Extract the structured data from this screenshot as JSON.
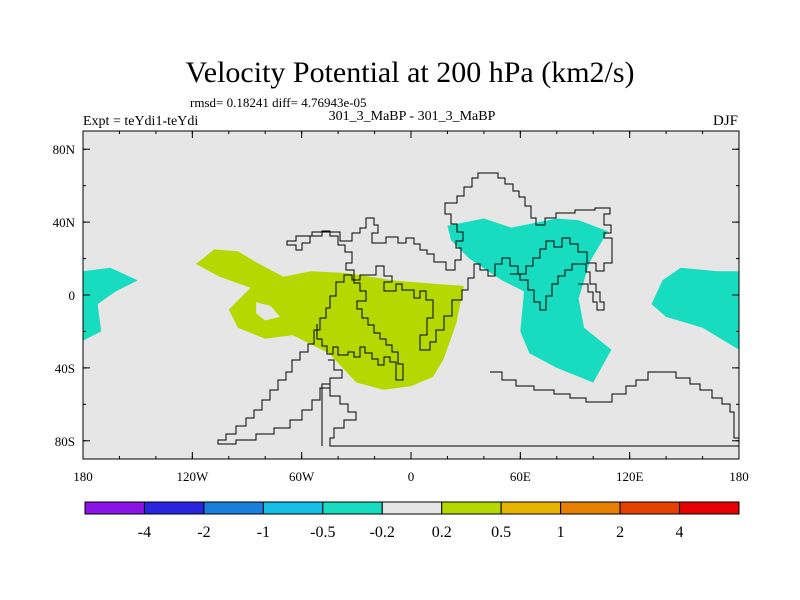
{
  "chart_data": {
    "type": "heatmap",
    "title": "Velocity Potential at 200 hPa (km2/s)",
    "subtitle": "rmsd= 0.18241  diff= 4.76943e-05",
    "left_label": "Expt = teYdi1-teYdi",
    "center_label": "301_3_MaBP - 301_3_MaBP",
    "right_label": "DJF",
    "x_axis": {
      "range": [
        -180,
        180
      ],
      "ticks": [
        {
          "value": -180,
          "label": "180"
        },
        {
          "value": -120,
          "label": "120W"
        },
        {
          "value": -60,
          "label": "60W"
        },
        {
          "value": 0,
          "label": "0"
        },
        {
          "value": 60,
          "label": "60E"
        },
        {
          "value": 120,
          "label": "120E"
        },
        {
          "value": 180,
          "label": "180"
        }
      ]
    },
    "y_axis": {
      "range": [
        -90,
        90
      ],
      "ticks": [
        {
          "value": 80,
          "label": "80N"
        },
        {
          "value": 40,
          "label": "40N"
        },
        {
          "value": 0,
          "label": "0"
        },
        {
          "value": -40,
          "label": "40S"
        },
        {
          "value": -80,
          "label": "80S"
        }
      ]
    },
    "background_color": "#e6e6e6",
    "colorbar": {
      "colors": [
        "#8a14e6",
        "#2a24e0",
        "#1a7fdc",
        "#14bfe6",
        "#18dcc0",
        "#e6e6e6",
        "#b4d800",
        "#e6b400",
        "#e68000",
        "#e64000",
        "#e60000"
      ],
      "labels": [
        "-4",
        "-2",
        "-1",
        "-0.5",
        "-0.2",
        "0.2",
        "0.5",
        "1",
        "2",
        "4"
      ]
    },
    "regions": [
      {
        "name": "west-pacific-negative",
        "level": "-0.2 to -0.5",
        "color": "#18dcc0",
        "points": [
          [
            -180,
            13
          ],
          [
            -165,
            15
          ],
          [
            -150,
            8
          ],
          [
            -162,
            2
          ],
          [
            -172,
            -5
          ],
          [
            -170,
            -20
          ],
          [
            -180,
            -25
          ]
        ]
      },
      {
        "name": "east-pacific-positive",
        "level": "0.2 to 0.5",
        "color": "#b4d800",
        "points": [
          [
            -118,
            17
          ],
          [
            -108,
            25
          ],
          [
            -95,
            24
          ],
          [
            -85,
            18
          ],
          [
            -70,
            10
          ],
          [
            -55,
            13
          ],
          [
            -35,
            12
          ],
          [
            -10,
            8
          ],
          [
            15,
            6
          ],
          [
            29,
            5
          ],
          [
            25,
            -15
          ],
          [
            18,
            -35
          ],
          [
            12,
            -45
          ],
          [
            0,
            -50
          ],
          [
            -15,
            -52
          ],
          [
            -30,
            -48
          ],
          [
            -45,
            -32
          ],
          [
            -65,
            -22
          ],
          [
            -80,
            -24
          ],
          [
            -95,
            -18
          ],
          [
            -100,
            -8
          ],
          [
            -88,
            4
          ],
          [
            -105,
            10
          ]
        ]
      },
      {
        "name": "east-pacific-positive-hole",
        "level": "0.2",
        "color": "#e6e6e6",
        "points": [
          [
            -85,
            -4
          ],
          [
            -77,
            -6
          ],
          [
            -72,
            -12
          ],
          [
            -80,
            -14
          ],
          [
            -85,
            -10
          ]
        ]
      },
      {
        "name": "indian-ocean-negative",
        "level": "-0.2 to -0.5",
        "color": "#18dcc0",
        "points": [
          [
            20,
            38
          ],
          [
            40,
            42
          ],
          [
            55,
            37
          ],
          [
            80,
            42
          ],
          [
            92,
            41
          ],
          [
            108,
            35
          ],
          [
            98,
            18
          ],
          [
            92,
            -2
          ],
          [
            95,
            -18
          ],
          [
            110,
            -30
          ],
          [
            100,
            -48
          ],
          [
            80,
            -40
          ],
          [
            65,
            -32
          ],
          [
            60,
            -20
          ],
          [
            62,
            2
          ],
          [
            50,
            8
          ],
          [
            32,
            20
          ],
          [
            22,
            30
          ]
        ]
      },
      {
        "name": "maritime-continent-negative",
        "level": "-0.2 to -0.5",
        "color": "#18dcc0",
        "points": [
          [
            148,
            15
          ],
          [
            168,
            13
          ],
          [
            180,
            13
          ],
          [
            180,
            -30
          ],
          [
            160,
            -18
          ],
          [
            140,
            -12
          ],
          [
            132,
            -5
          ],
          [
            138,
            8
          ]
        ]
      }
    ]
  }
}
